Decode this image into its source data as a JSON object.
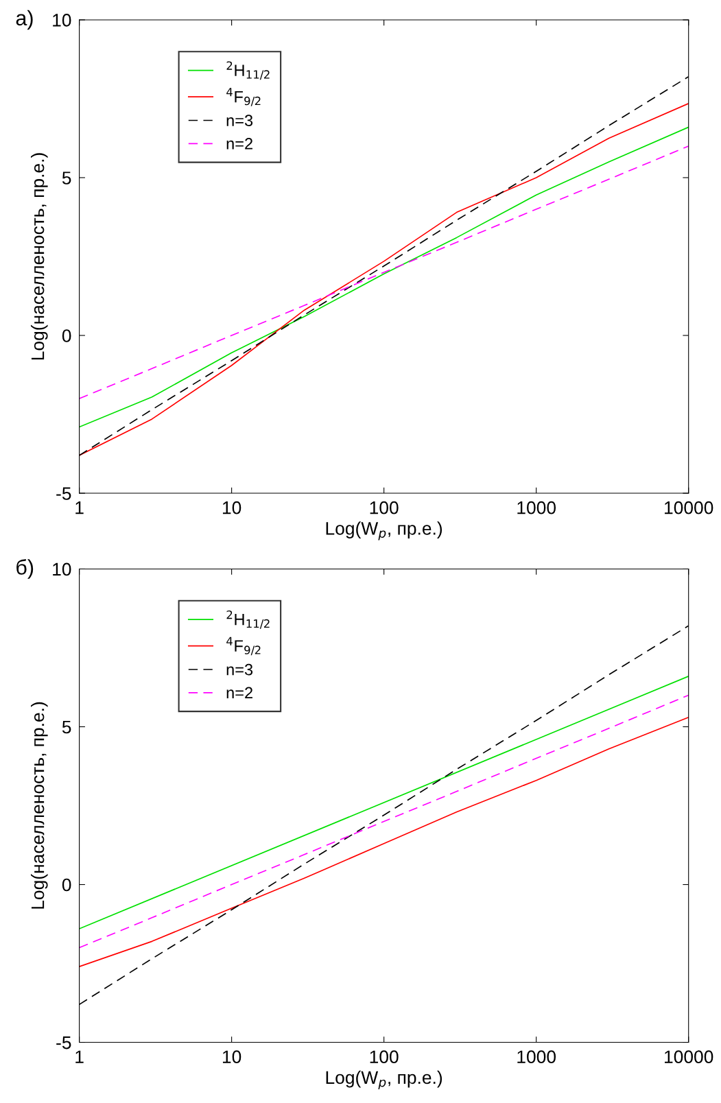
{
  "chart_data": [
    {
      "type": "line",
      "title": "а)",
      "xlabel": "Log(W$_{p}$, пр.е.)",
      "ylabel": "Log(населленость, пр.е.)",
      "log": "x",
      "xlim": [
        1,
        10000
      ],
      "xticks": [
        1,
        10,
        100,
        1000,
        10000
      ],
      "ylim": [
        -5,
        10
      ],
      "yticks": [
        -5,
        0,
        5,
        10
      ],
      "grid": false,
      "legend": "top left",
      "marker": "none",
      "x": [
        1,
        3,
        10,
        30,
        100,
        300,
        1000,
        3000,
        10000
      ],
      "series": [
        {
          "name": "$^{2}$H$_{11/2}$",
          "color": "#00e000",
          "line_style": "solid",
          "values": [
            -2.9,
            -1.95,
            -0.55,
            0.6,
            1.95,
            3.1,
            4.45,
            5.5,
            6.6
          ]
        },
        {
          "name": "$^{4}$F$_{9/2}$",
          "color": "#ff0000",
          "line_style": "solid",
          "values": [
            -3.8,
            -2.65,
            -0.95,
            0.8,
            2.35,
            3.9,
            5.0,
            6.25,
            7.35
          ]
        },
        {
          "name": "n=3",
          "color": "#000000",
          "line_style": "dashed",
          "values": [
            -3.8,
            -2.35,
            -0.8,
            0.65,
            2.2,
            3.65,
            5.2,
            6.65,
            8.2
          ]
        },
        {
          "name": "n=2",
          "color": "#ff00ff",
          "line_style": "dashed",
          "values": [
            -2.0,
            -1.05,
            0.0,
            0.95,
            2.0,
            2.95,
            4.0,
            4.95,
            6.0
          ]
        }
      ]
    },
    {
      "type": "line",
      "title": "б)",
      "xlabel": "Log(W$_{p}$, пр.е.)",
      "ylabel": "Log(населленость, пр.е.)",
      "log": "x",
      "xlim": [
        1,
        10000
      ],
      "xticks": [
        1,
        10,
        100,
        1000,
        10000
      ],
      "ylim": [
        -5,
        10
      ],
      "yticks": [
        -5,
        0,
        5,
        10
      ],
      "grid": false,
      "legend": "top left",
      "marker": "none",
      "x": [
        1,
        3,
        10,
        30,
        100,
        300,
        1000,
        3000,
        10000
      ],
      "series": [
        {
          "name": "$^{2}$H$_{11/2}$",
          "color": "#00e000",
          "line_style": "solid",
          "x": [
            1,
            10000
          ],
          "values": [
            -1.4,
            6.6
          ]
        },
        {
          "name": "$^{4}$F$_{9/2}$",
          "color": "#ff0000",
          "line_style": "solid",
          "values": [
            -2.6,
            -1.8,
            -0.75,
            0.2,
            1.3,
            2.3,
            3.3,
            4.3,
            5.3
          ]
        },
        {
          "name": "n=3",
          "color": "#000000",
          "line_style": "dashed",
          "values": [
            -3.8,
            -2.35,
            -0.8,
            0.65,
            2.2,
            3.65,
            5.2,
            6.65,
            8.2
          ]
        },
        {
          "name": "n=2",
          "color": "#ff00ff",
          "line_style": "dashed",
          "values": [
            -2.0,
            -1.05,
            0.0,
            0.95,
            2.0,
            2.95,
            4.0,
            4.95,
            6.0
          ]
        }
      ]
    }
  ]
}
